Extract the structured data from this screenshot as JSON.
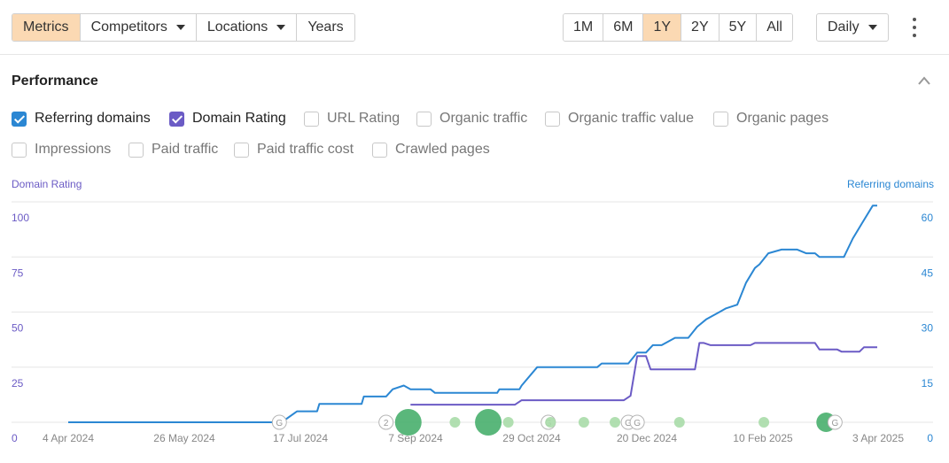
{
  "toolbar": {
    "left_buttons": [
      "Metrics",
      "Competitors",
      "Locations",
      "Years"
    ],
    "ranges": [
      "1M",
      "6M",
      "1Y",
      "2Y",
      "5Y",
      "All"
    ],
    "active_range": "1Y",
    "interval": "Daily"
  },
  "panel": {
    "title": "Performance",
    "checkboxes": [
      {
        "label": "Referring domains",
        "checked": true,
        "color": "#2b87d3"
      },
      {
        "label": "Domain Rating",
        "checked": true,
        "color": "#6b5bc5"
      },
      {
        "label": "URL Rating",
        "checked": false
      },
      {
        "label": "Organic traffic",
        "checked": false
      },
      {
        "label": "Organic traffic value",
        "checked": false
      },
      {
        "label": "Organic pages",
        "checked": false
      },
      {
        "label": "Impressions",
        "checked": false
      },
      {
        "label": "Paid traffic",
        "checked": false
      },
      {
        "label": "Paid traffic cost",
        "checked": false
      },
      {
        "label": "Crawled pages",
        "checked": false
      }
    ]
  },
  "chart_data": {
    "type": "line",
    "left_axis_label": "Domain Rating",
    "right_axis_label": "Referring domains",
    "left_ticks": [
      0,
      25,
      50,
      75,
      100
    ],
    "right_ticks": [
      0,
      15,
      30,
      45,
      60
    ],
    "left_ylim": [
      0,
      100
    ],
    "right_ylim": [
      0,
      60
    ],
    "x_ticks": [
      "4 Apr 2024",
      "26 May 2024",
      "17 Jul 2024",
      "7 Sep 2024",
      "29 Oct 2024",
      "20 Dec 2024",
      "10 Feb 2025",
      "3 Apr 2025"
    ],
    "xlim": [
      "2024-04-04",
      "2025-04-03"
    ],
    "colors": {
      "referring_domains": "#2b87d3",
      "domain_rating": "#6b5bc5",
      "left_axis": "#6b5bc5",
      "right_axis": "#2b87d3",
      "grid": "#e6e6e6",
      "marker": "#3daa64",
      "marker_light": "#a8dba8"
    },
    "series": [
      {
        "name": "Referring domains",
        "axis": "right",
        "points": [
          [
            "2024-04-04",
            0
          ],
          [
            "2024-07-09",
            0
          ],
          [
            "2024-07-16",
            3
          ],
          [
            "2024-07-25",
            3
          ],
          [
            "2024-07-26",
            5
          ],
          [
            "2024-08-14",
            5
          ],
          [
            "2024-08-15",
            7
          ],
          [
            "2024-08-25",
            7
          ],
          [
            "2024-08-28",
            9
          ],
          [
            "2024-09-02",
            10
          ],
          [
            "2024-09-05",
            9
          ],
          [
            "2024-09-14",
            9
          ],
          [
            "2024-09-16",
            8
          ],
          [
            "2024-10-14",
            8
          ],
          [
            "2024-10-15",
            9
          ],
          [
            "2024-10-24",
            9
          ],
          [
            "2024-10-25",
            10
          ],
          [
            "2024-11-01",
            15
          ],
          [
            "2024-11-28",
            15
          ],
          [
            "2024-11-30",
            16
          ],
          [
            "2024-12-12",
            16
          ],
          [
            "2024-12-16",
            19
          ],
          [
            "2024-12-20",
            19
          ],
          [
            "2024-12-23",
            21
          ],
          [
            "2024-12-27",
            21
          ],
          [
            "2025-01-02",
            23
          ],
          [
            "2025-01-08",
            23
          ],
          [
            "2025-01-12",
            26
          ],
          [
            "2025-01-16",
            28
          ],
          [
            "2025-01-22",
            30
          ],
          [
            "2025-01-25",
            31
          ],
          [
            "2025-01-30",
            32
          ],
          [
            "2025-02-03",
            38
          ],
          [
            "2025-02-07",
            42
          ],
          [
            "2025-02-09",
            43
          ],
          [
            "2025-02-13",
            46
          ],
          [
            "2025-02-19",
            47
          ],
          [
            "2025-02-26",
            47
          ],
          [
            "2025-03-02",
            46
          ],
          [
            "2025-03-06",
            46
          ],
          [
            "2025-03-08",
            45
          ],
          [
            "2025-03-19",
            45
          ],
          [
            "2025-03-23",
            50
          ],
          [
            "2025-03-27",
            54
          ],
          [
            "2025-04-01",
            59
          ],
          [
            "2025-04-03",
            59
          ]
        ]
      },
      {
        "name": "Domain Rating",
        "axis": "left",
        "points": [
          [
            "2024-09-05",
            8
          ],
          [
            "2024-10-22",
            8
          ],
          [
            "2024-10-25",
            10
          ],
          [
            "2024-12-10",
            10
          ],
          [
            "2024-12-13",
            12
          ],
          [
            "2024-12-16",
            30
          ],
          [
            "2024-12-20",
            30
          ],
          [
            "2024-12-22",
            24
          ],
          [
            "2025-01-11",
            24
          ],
          [
            "2025-01-13",
            36
          ],
          [
            "2025-01-15",
            36
          ],
          [
            "2025-01-18",
            35
          ],
          [
            "2025-02-05",
            35
          ],
          [
            "2025-02-07",
            36
          ],
          [
            "2025-03-06",
            36
          ],
          [
            "2025-03-08",
            33
          ],
          [
            "2025-03-16",
            33
          ],
          [
            "2025-03-18",
            32
          ],
          [
            "2025-03-26",
            32
          ],
          [
            "2025-03-28",
            34
          ],
          [
            "2025-04-03",
            34
          ]
        ]
      }
    ],
    "annotations": [
      {
        "date": "2024-07-08",
        "label": "G",
        "kind": "badge"
      },
      {
        "date": "2024-08-25",
        "label": "2",
        "kind": "badge"
      },
      {
        "date": "2024-09-04",
        "kind": "dot",
        "size": "large"
      },
      {
        "date": "2024-09-25",
        "kind": "dot",
        "size": "small"
      },
      {
        "date": "2024-10-10",
        "kind": "dot",
        "size": "large"
      },
      {
        "date": "2024-10-19",
        "kind": "dot",
        "size": "small"
      },
      {
        "date": "2024-11-06",
        "label": "G",
        "kind": "badge"
      },
      {
        "date": "2024-11-07",
        "kind": "dot",
        "size": "small"
      },
      {
        "date": "2024-11-22",
        "kind": "dot",
        "size": "small"
      },
      {
        "date": "2024-12-06",
        "kind": "dot",
        "size": "small"
      },
      {
        "date": "2024-12-12",
        "label": "G",
        "kind": "badge"
      },
      {
        "date": "2024-12-16",
        "label": "G",
        "kind": "badge"
      },
      {
        "date": "2025-01-04",
        "kind": "dot",
        "size": "small"
      },
      {
        "date": "2025-02-11",
        "kind": "dot",
        "size": "small"
      },
      {
        "date": "2025-03-11",
        "kind": "dot",
        "size": "medium"
      },
      {
        "date": "2025-03-15",
        "label": "G",
        "kind": "badge"
      }
    ]
  }
}
